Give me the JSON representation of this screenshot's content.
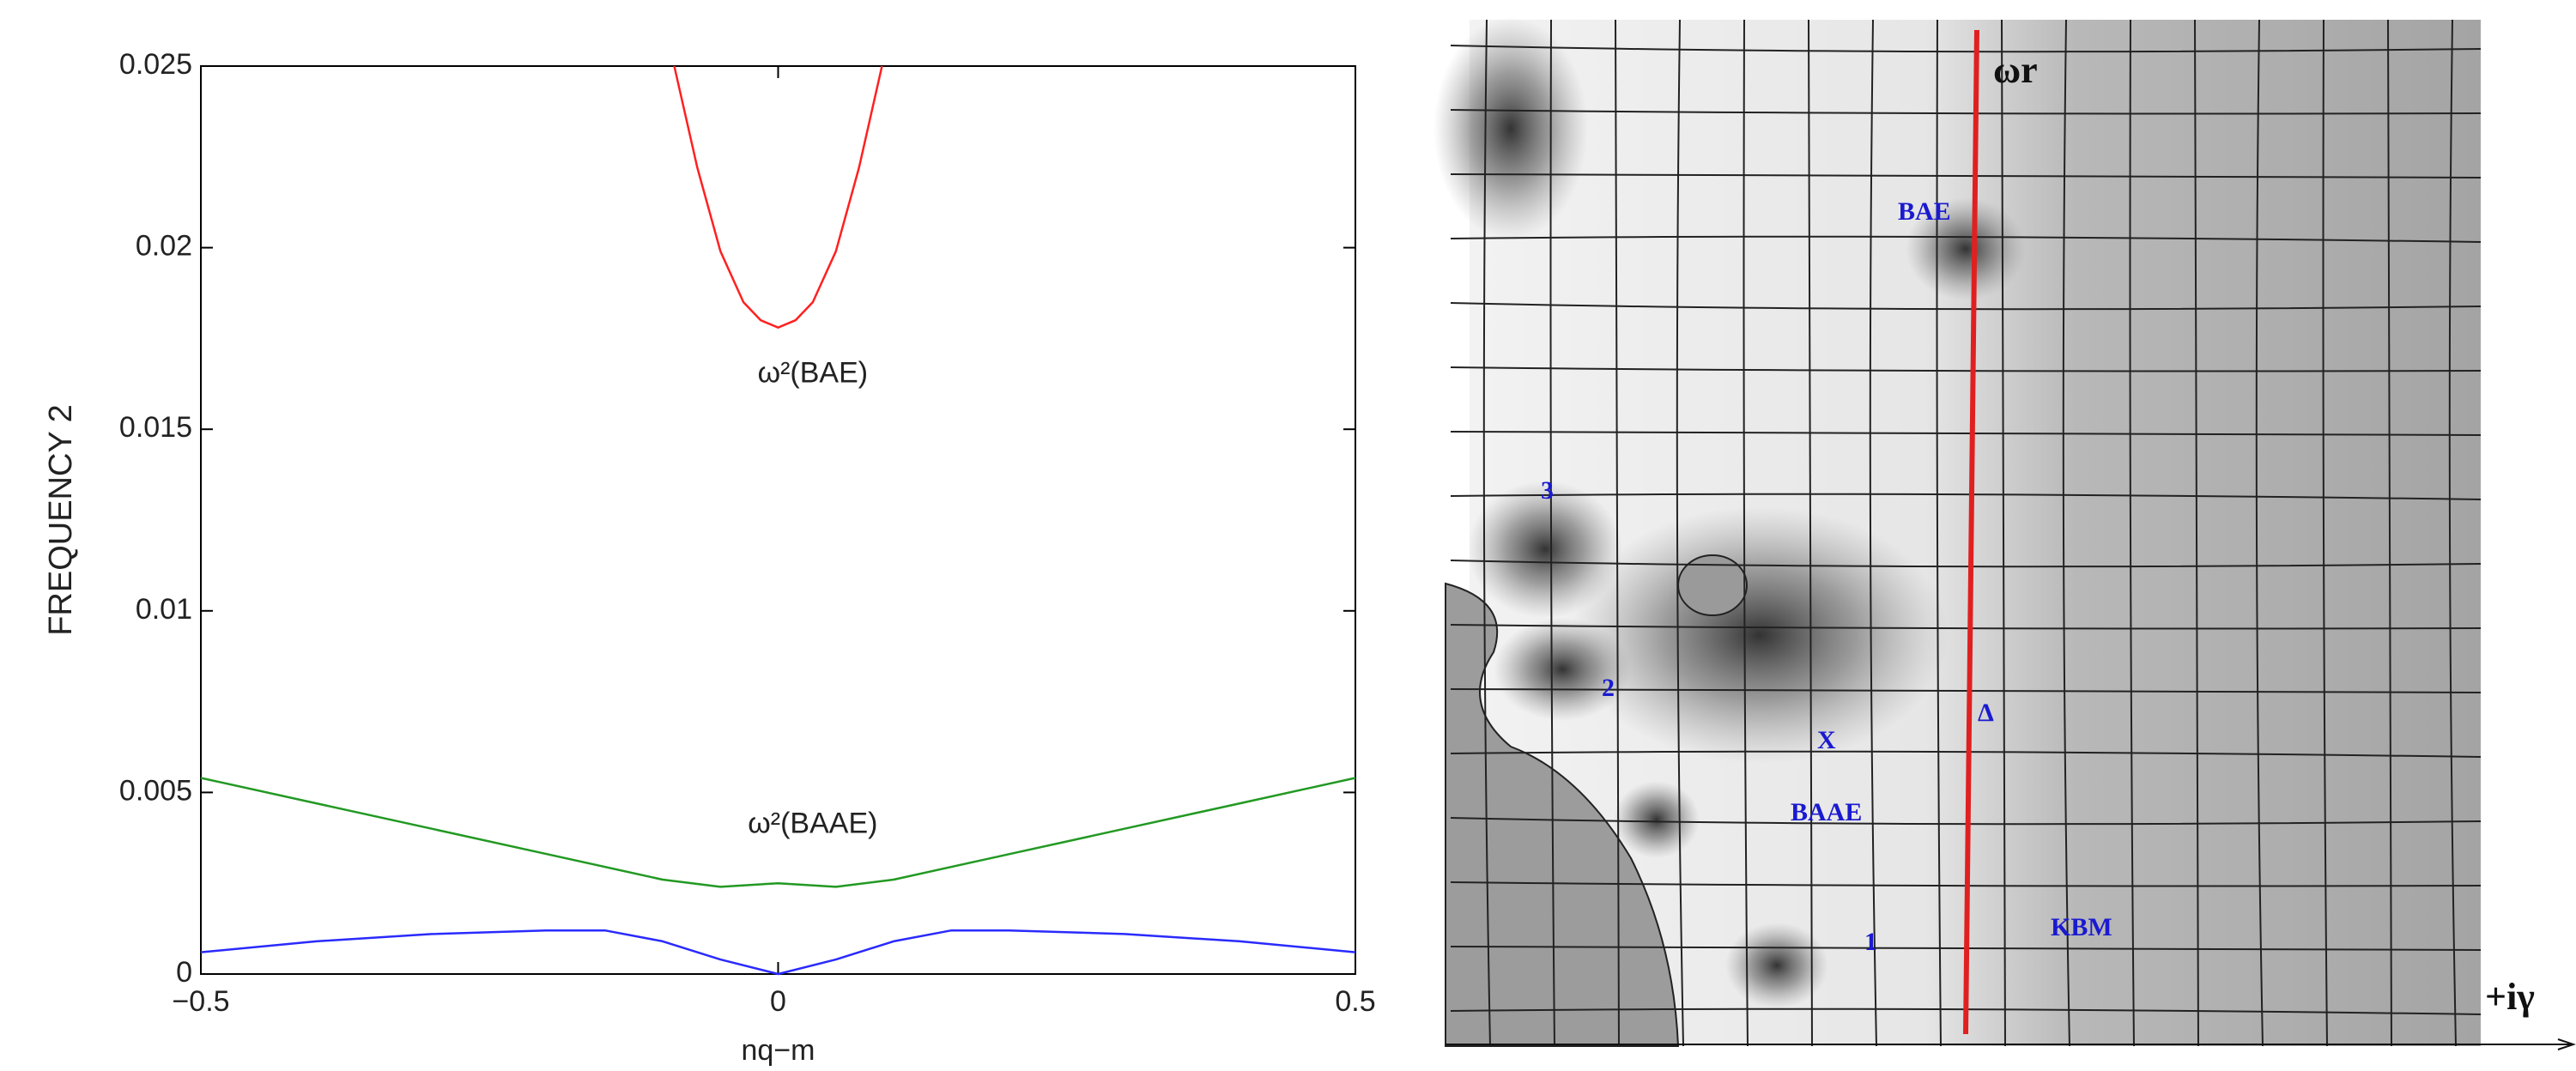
{
  "chart_data": {
    "type": "line",
    "xlabel": "nq−m",
    "ylabel": "FREQUENCY 2",
    "xlim": [
      -0.5,
      0.5
    ],
    "ylim": [
      0,
      0.025
    ],
    "xticks": [
      {
        "value": -0.5,
        "label": "−0.5"
      },
      0,
      0.5
    ],
    "yticks": [
      0,
      0.005,
      0.01,
      0.015,
      0.02,
      0.025
    ],
    "annotations": [
      {
        "text": "ω²(BAE)",
        "x": 0.03,
        "y": 0.0165
      },
      {
        "text": "ω²(BAAE)",
        "x": 0.03,
        "y": 0.0041
      }
    ],
    "series": [
      {
        "color": "#ff2020",
        "x": [
          -0.09,
          -0.07,
          -0.05,
          -0.03,
          -0.015,
          0,
          0.015,
          0.03,
          0.05,
          0.07,
          0.09
        ],
        "values": [
          0.025,
          0.0222,
          0.0199,
          0.0185,
          0.018,
          0.0178,
          0.018,
          0.0185,
          0.0199,
          0.0222,
          0.025
        ]
      },
      {
        "color": "#229922",
        "x": [
          -0.5,
          -0.4,
          -0.3,
          -0.2,
          -0.1,
          -0.05,
          0,
          0.05,
          0.1,
          0.2,
          0.3,
          0.4,
          0.5
        ],
        "values": [
          0.0054,
          0.0047,
          0.004,
          0.0033,
          0.0026,
          0.0024,
          0.0025,
          0.0024,
          0.0026,
          0.0033,
          0.004,
          0.0047,
          0.0054
        ]
      },
      {
        "color": "#2a2aff",
        "x": [
          -0.5,
          -0.4,
          -0.3,
          -0.2,
          -0.15,
          -0.1,
          -0.05,
          0,
          0.05,
          0.1,
          0.15,
          0.2,
          0.3,
          0.4,
          0.5
        ],
        "values": [
          0.0006,
          0.0009,
          0.0011,
          0.0012,
          0.0012,
          0.0009,
          0.0004,
          0,
          0.0004,
          0.0009,
          0.0012,
          0.0012,
          0.0011,
          0.0009,
          0.0006
        ]
      }
    ]
  },
  "panel_b": {
    "labels": [
      "ωr",
      "BAE",
      "3",
      "2",
      "X",
      "BAAE",
      "Δ",
      "KBM",
      "1",
      "+iγ"
    ]
  }
}
